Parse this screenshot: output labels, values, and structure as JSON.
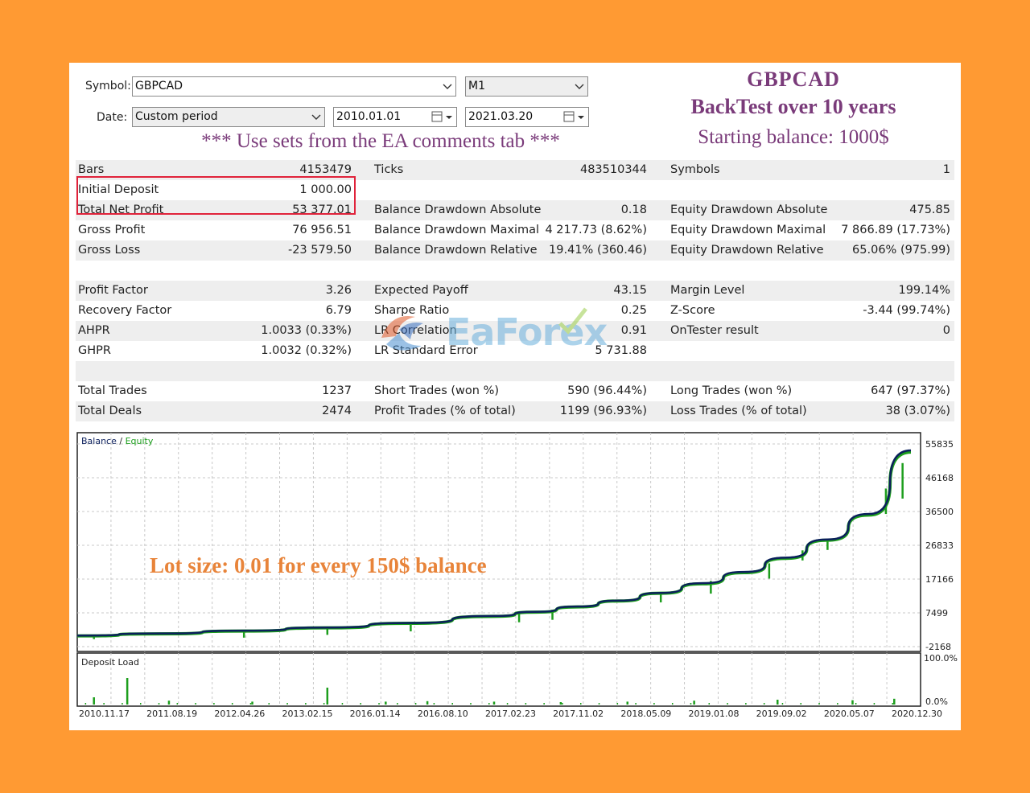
{
  "header": {
    "symbol_label": "Symbol:",
    "symbol_value": "GBPCAD",
    "timeframe_value": "M1",
    "date_label": "Date:",
    "period_value": "Custom period",
    "date_from": "2010.01.01",
    "date_to": "2021.03.20"
  },
  "titles": {
    "line1": "GBPCAD",
    "line2": "BackTest over 10 years",
    "line3": "Starting balance: 1000$",
    "note": "*** Use sets from the EA comments tab ***"
  },
  "stats": {
    "rows": [
      {
        "shaded": true,
        "c": [
          [
            "Bars",
            "4153479"
          ],
          [
            "Ticks",
            "483510344"
          ],
          [
            "Symbols",
            "1"
          ]
        ]
      },
      {
        "shaded": false,
        "c": [
          [
            "Initial Deposit",
            "1 000.00"
          ],
          [
            "",
            ""
          ],
          [
            "",
            ""
          ]
        ]
      },
      {
        "shaded": true,
        "c": [
          [
            "Total Net Profit",
            "53 377.01"
          ],
          [
            "Balance Drawdown Absolute",
            "0.18"
          ],
          [
            "Equity Drawdown Absolute",
            "475.85"
          ]
        ]
      },
      {
        "shaded": false,
        "c": [
          [
            "Gross Profit",
            "76 956.51"
          ],
          [
            "Balance Drawdown Maximal",
            "4 217.73 (8.62%)"
          ],
          [
            "Equity Drawdown Maximal",
            "7 866.89 (17.73%)"
          ]
        ]
      },
      {
        "shaded": true,
        "c": [
          [
            "Gross Loss",
            "-23 579.50"
          ],
          [
            "Balance Drawdown Relative",
            "19.41% (360.46)"
          ],
          [
            "Equity Drawdown Relative",
            "65.06% (975.99)"
          ]
        ]
      },
      {
        "shaded": false,
        "c": [
          [
            "",
            ""
          ],
          [
            "",
            ""
          ],
          [
            "",
            ""
          ]
        ]
      },
      {
        "shaded": true,
        "c": [
          [
            "Profit Factor",
            "3.26"
          ],
          [
            "Expected Payoff",
            "43.15"
          ],
          [
            "Margin Level",
            "199.14%"
          ]
        ]
      },
      {
        "shaded": false,
        "c": [
          [
            "Recovery Factor",
            "6.79"
          ],
          [
            "Sharpe Ratio",
            "0.25"
          ],
          [
            "Z-Score",
            "-3.44 (99.74%)"
          ]
        ]
      },
      {
        "shaded": true,
        "c": [
          [
            "AHPR",
            "1.0033 (0.33%)"
          ],
          [
            "LR Correlation",
            "0.91"
          ],
          [
            "OnTester result",
            "0"
          ]
        ]
      },
      {
        "shaded": false,
        "c": [
          [
            "GHPR",
            "1.0032 (0.32%)"
          ],
          [
            "LR Standard Error",
            "5 731.88"
          ],
          [
            "",
            ""
          ]
        ]
      },
      {
        "shaded": true,
        "c": [
          [
            "",
            ""
          ],
          [
            "",
            ""
          ],
          [
            "",
            ""
          ]
        ]
      },
      {
        "shaded": false,
        "c": [
          [
            "Total Trades",
            "1237"
          ],
          [
            "Short Trades (won %)",
            "590 (96.44%)"
          ],
          [
            "Long Trades (won %)",
            "647 (97.37%)"
          ]
        ]
      },
      {
        "shaded": true,
        "c": [
          [
            "Total Deals",
            "2474"
          ],
          [
            "Profit Trades (% of total)",
            "1199 (96.93%)"
          ],
          [
            "Loss Trades (% of total)",
            "38 (3.07%)"
          ]
        ]
      }
    ]
  },
  "watermark": {
    "text": "EaForex"
  },
  "annotation": {
    "lot_text": "Lot size: 0.01 for every 150$ balance"
  },
  "colors": {
    "balance": "#0b1f5c",
    "equity": "#1d9e1d",
    "highlight": "#e0223a",
    "background": "#FF9A33"
  },
  "chart_data": {
    "type": "line",
    "legend": {
      "balance": "Balance",
      "separator": " / ",
      "equity": "Equity"
    },
    "y_ticks": [
      "55835",
      "46168",
      "36500",
      "26833",
      "17166",
      "7499",
      "-2168"
    ],
    "ylim": [
      -2168,
      55835
    ],
    "x_ticks": [
      "2010.11.17",
      "2011.08.19",
      "2012.04.26",
      "2013.02.15",
      "2016.01.14",
      "2016.08.10",
      "2017.02.23",
      "2017.11.02",
      "2018.05.09",
      "2019.01.08",
      "2019.09.02",
      "2020.05.07",
      "2020.12.30"
    ],
    "series": [
      {
        "name": "Balance",
        "x": [
          0,
          10,
          20,
          30,
          40,
          50,
          55,
          60,
          65,
          70,
          75,
          80,
          85,
          90,
          95,
          100
        ],
        "values": [
          1000,
          1600,
          2400,
          3300,
          4600,
          6600,
          7800,
          9300,
          11000,
          13200,
          16000,
          19200,
          23300,
          28500,
          35800,
          54000
        ]
      },
      {
        "name": "Equity",
        "x": [
          0,
          10,
          20,
          30,
          40,
          50,
          55,
          60,
          65,
          70,
          75,
          80,
          85,
          90,
          95,
          100
        ],
        "values": [
          900,
          1500,
          2300,
          3200,
          4500,
          6500,
          7700,
          9200,
          10900,
          13100,
          15800,
          19000,
          23100,
          28300,
          35500,
          53500
        ]
      }
    ],
    "equity_dips": [
      {
        "x": 2,
        "low": 0
      },
      {
        "x": 20,
        "low": 400
      },
      {
        "x": 30,
        "low": 1200
      },
      {
        "x": 40,
        "low": 2200
      },
      {
        "x": 53,
        "low": 4800
      },
      {
        "x": 57,
        "low": 5500
      },
      {
        "x": 70,
        "low": 10500
      },
      {
        "x": 76,
        "low": 13000
      },
      {
        "x": 83,
        "low": 17300
      },
      {
        "x": 87,
        "low": 22500
      },
      {
        "x": 90,
        "low": 25500
      },
      {
        "x": 97,
        "low": 35800
      },
      {
        "x": 99,
        "low": 40200
      }
    ],
    "deposit_load": {
      "label": "Deposit Load",
      "y_ticks": [
        "100.0%",
        "0.0%"
      ],
      "ylim": [
        0,
        100
      ],
      "spikes": [
        {
          "x": 2,
          "v": 15
        },
        {
          "x": 6,
          "v": 55
        },
        {
          "x": 11,
          "v": 8
        },
        {
          "x": 21,
          "v": 6
        },
        {
          "x": 30,
          "v": 35
        },
        {
          "x": 37,
          "v": 6
        },
        {
          "x": 42,
          "v": 7
        },
        {
          "x": 50,
          "v": 6
        },
        {
          "x": 58,
          "v": 5
        },
        {
          "x": 66,
          "v": 6
        },
        {
          "x": 74,
          "v": 8
        },
        {
          "x": 84,
          "v": 10
        },
        {
          "x": 93,
          "v": 9
        },
        {
          "x": 98,
          "v": 12
        }
      ]
    }
  }
}
